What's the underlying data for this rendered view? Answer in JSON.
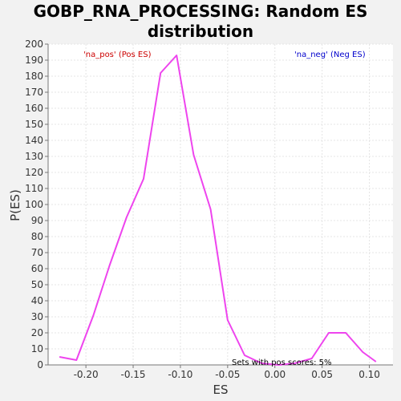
{
  "chart_data": {
    "type": "line",
    "title_line1": "GOBP_RNA_PROCESSING: Random ES",
    "title_line2": "distribution",
    "xlabel": "ES",
    "ylabel": "P(ES)",
    "xlim": [
      -0.24,
      0.125
    ],
    "ylim": [
      0,
      200
    ],
    "xticks": [
      -0.2,
      -0.15,
      -0.1,
      -0.05,
      0.0,
      0.05,
      0.1
    ],
    "xtick_labels": [
      "-0.20",
      "-0.15",
      "-0.10",
      "-0.05",
      "0.00",
      "0.05",
      "0.10"
    ],
    "yticks": [
      0,
      10,
      20,
      30,
      40,
      50,
      60,
      70,
      80,
      90,
      100,
      110,
      120,
      130,
      140,
      150,
      160,
      170,
      180,
      190,
      200
    ],
    "grid": true,
    "series": [
      {
        "color": "#ee44ee",
        "x": [
          -0.228,
          -0.21,
          -0.192,
          -0.175,
          -0.157,
          -0.139,
          -0.121,
          -0.104,
          -0.086,
          -0.068,
          -0.05,
          -0.032,
          -0.014,
          0.004,
          0.021,
          0.039,
          0.057,
          0.075,
          0.093,
          0.107
        ],
        "y": [
          5,
          3,
          31,
          62,
          92,
          116,
          182,
          193,
          131,
          97,
          28,
          6,
          1,
          0,
          1,
          4,
          20,
          20,
          8,
          2
        ]
      }
    ],
    "annotations": {
      "pos": {
        "text": "'na_pos' (Pos ES)",
        "color": "#cc0000"
      },
      "neg": {
        "text": "'na_neg' (Neg ES)",
        "color": "#0000cc"
      },
      "sets": {
        "text": "Sets with pos scores: 5%",
        "color": "#000000"
      }
    }
  }
}
